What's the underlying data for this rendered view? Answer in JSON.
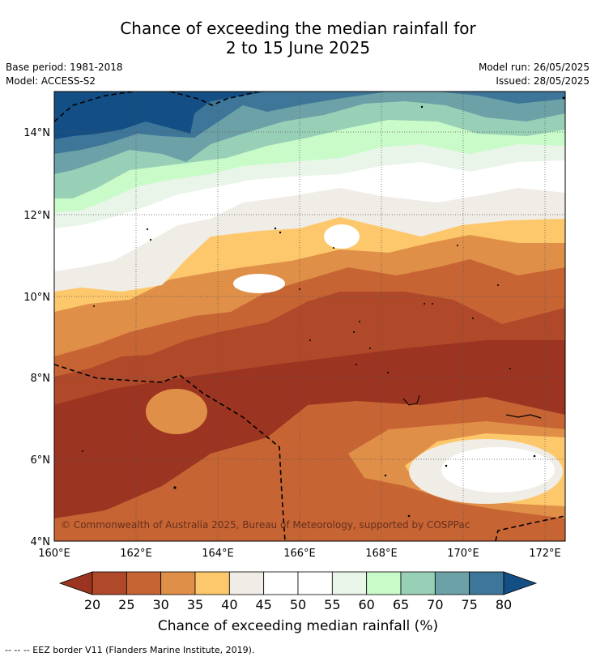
{
  "title_line1": "Chance of exceeding the median rainfall for",
  "title_line2": "2 to 15 June 2025",
  "base_period": "Base period: 1981-2018",
  "model": "Model: ACCESS-S2",
  "model_run": "Model run: 26/05/2025",
  "issued": "Issued: 28/05/2025",
  "copyright": "© Commonwealth of Australia 2025, Bureau of Meteorology, supported by COSPPac",
  "lat_ticks": [
    "14°N",
    "12°N",
    "10°N",
    "8°N",
    "6°N",
    "4°N"
  ],
  "lon_ticks": [
    "160°E",
    "162°E",
    "164°E",
    "166°E",
    "168°E",
    "170°E",
    "172°E"
  ],
  "colorbar": {
    "title": "Chance of exceeding median rainfall (%)",
    "labels": [
      "20",
      "25",
      "30",
      "35",
      "40",
      "45",
      "50",
      "55",
      "60",
      "65",
      "70",
      "75",
      "80"
    ],
    "colors": [
      "#9b3420",
      "#b0492a",
      "#c76434",
      "#e08f48",
      "#fdc86b",
      "#f0ece6",
      "#ffffff",
      "#ffffff",
      "#e9f5e9",
      "#c9fbc9",
      "#98d0b7",
      "#6ca2a7",
      "#3e7699",
      "#134e85"
    ]
  },
  "footer": "-- -- -- EEZ border V11 (Flanders Marine Institute, 2019)."
}
